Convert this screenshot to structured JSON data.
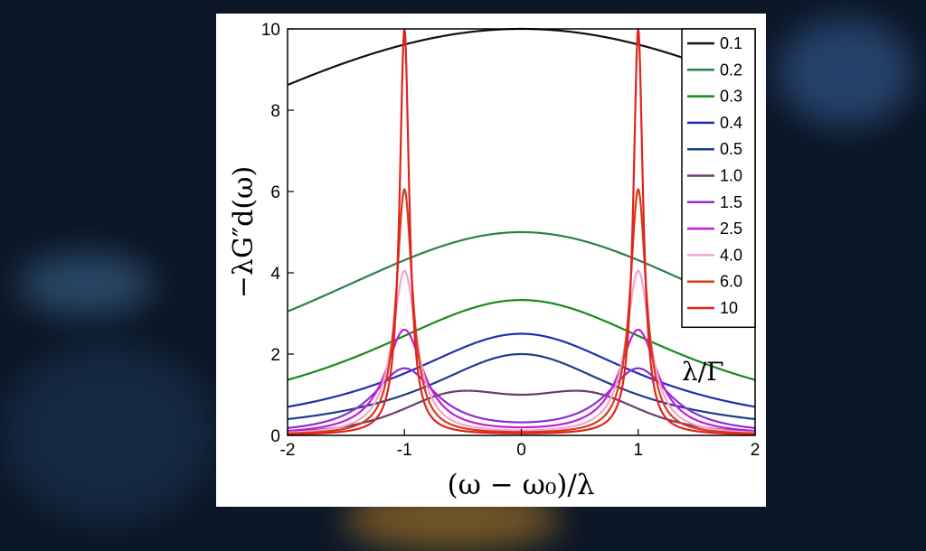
{
  "chart_data": {
    "type": "line",
    "xlabel": "(ω − ω₀)/λ",
    "ylabel": "−λG″d(ω)",
    "xlim": [
      -2,
      2
    ],
    "ylim": [
      0,
      10
    ],
    "x_ticks": [
      "-2",
      "-1",
      "0",
      "1",
      "2"
    ],
    "y_ticks": [
      "0",
      "2",
      "4",
      "6",
      "8",
      "10"
    ],
    "legend_title": "λ/Γ",
    "legend_position": "top-right",
    "grid": false,
    "series": [
      {
        "name": "0.1",
        "color": "#111111",
        "peak_center": 10.0,
        "peak_side": 0.0
      },
      {
        "name": "0.2",
        "color": "#2f7f4a",
        "peak_center": 5.0,
        "peak_side": 0.0
      },
      {
        "name": "0.3",
        "color": "#178a1c",
        "peak_center": 3.33,
        "peak_side": 0.0
      },
      {
        "name": "0.4",
        "color": "#1f2fb0",
        "peak_center": 2.5,
        "peak_side": 0.0
      },
      {
        "name": "0.5",
        "color": "#1b3f8a",
        "peak_center": 2.0,
        "peak_side": 0.0
      },
      {
        "name": "1.0",
        "color": "#6a3d6b",
        "peak_center": 1.0,
        "peak_side": 1.0
      },
      {
        "name": "1.5",
        "color": "#8a2fd6",
        "peak_center": 0.7,
        "peak_side": 1.65
      },
      {
        "name": "2.5",
        "color": "#c21ed6",
        "peak_center": 0.42,
        "peak_side": 2.6
      },
      {
        "name": "4.0",
        "color": "#f0a6d6",
        "peak_center": 0.27,
        "peak_side": 4.05
      },
      {
        "name": "6.0",
        "color": "#d93a1a",
        "peak_center": 0.18,
        "peak_side": 6.05
      },
      {
        "name": "10",
        "color": "#e0231c",
        "peak_center": 0.1,
        "peak_side": 10.0
      }
    ]
  }
}
